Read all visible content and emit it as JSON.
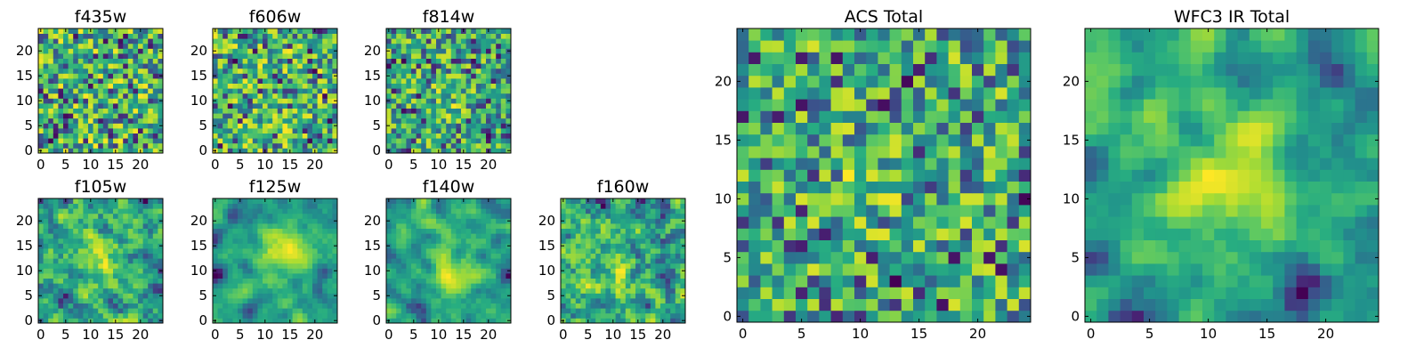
{
  "chart_data": [
    {
      "type": "heatmap",
      "title": "f435w",
      "grid_size": 25,
      "xticks": [
        0,
        5,
        10,
        15,
        20
      ],
      "yticks": [
        0,
        5,
        10,
        15,
        20
      ],
      "colormap": "viridis",
      "seed": 435,
      "smooth": 0,
      "blobs": []
    },
    {
      "type": "heatmap",
      "title": "f606w",
      "grid_size": 25,
      "xticks": [
        0,
        5,
        10,
        15,
        20
      ],
      "yticks": [
        0,
        5,
        10,
        15,
        20
      ],
      "colormap": "viridis",
      "seed": 606,
      "smooth": 0,
      "blobs": []
    },
    {
      "type": "heatmap",
      "title": "f814w",
      "grid_size": 25,
      "xticks": [
        0,
        5,
        10,
        15,
        20
      ],
      "yticks": [
        0,
        5,
        10,
        15,
        20
      ],
      "colormap": "viridis",
      "seed": 814,
      "smooth": 0,
      "blobs": [
        {
          "x": 12,
          "y": 11,
          "r": 2.5,
          "amp": 0.25
        }
      ]
    },
    {
      "type": "heatmap",
      "title": "f105w",
      "grid_size": 25,
      "xticks": [
        0,
        5,
        10,
        15,
        20
      ],
      "yticks": [
        0,
        5,
        10,
        15,
        20
      ],
      "colormap": "viridis",
      "seed": 105,
      "smooth": 1,
      "blobs": [
        {
          "x": 12,
          "y": 12,
          "r": 4,
          "amp": 0.2
        }
      ]
    },
    {
      "type": "heatmap",
      "title": "f125w",
      "grid_size": 25,
      "xticks": [
        0,
        5,
        10,
        15,
        20
      ],
      "yticks": [
        0,
        5,
        10,
        15,
        20
      ],
      "colormap": "viridis",
      "seed": 125,
      "smooth": 2,
      "blobs": [
        {
          "x": 13,
          "y": 13,
          "r": 4,
          "amp": 0.35
        }
      ]
    },
    {
      "type": "heatmap",
      "title": "f140w",
      "grid_size": 25,
      "xticks": [
        0,
        5,
        10,
        15,
        20
      ],
      "yticks": [
        0,
        5,
        10,
        15,
        20
      ],
      "colormap": "viridis",
      "seed": 140,
      "smooth": 2,
      "blobs": [
        {
          "x": 13,
          "y": 11,
          "r": 4,
          "amp": 0.3
        }
      ]
    },
    {
      "type": "heatmap",
      "title": "f160w",
      "grid_size": 25,
      "xticks": [
        0,
        5,
        10,
        15,
        20
      ],
      "yticks": [
        0,
        5,
        10,
        15,
        20
      ],
      "colormap": "viridis",
      "seed": 160,
      "smooth": 1,
      "blobs": [
        {
          "x": 10,
          "y": 9,
          "r": 4,
          "amp": 0.2
        }
      ]
    },
    {
      "type": "heatmap",
      "title": "ACS Total",
      "grid_size": 25,
      "xticks": [
        0,
        5,
        10,
        15,
        20
      ],
      "yticks": [
        0,
        5,
        10,
        15,
        20
      ],
      "colormap": "viridis",
      "seed": 2001,
      "smooth": 0,
      "blobs": [
        {
          "x": 11,
          "y": 12,
          "r": 3,
          "amp": 0.15
        }
      ]
    },
    {
      "type": "heatmap",
      "title": "WFC3 IR Total",
      "grid_size": 25,
      "xticks": [
        0,
        5,
        10,
        15,
        20
      ],
      "yticks": [
        0,
        5,
        10,
        15,
        20
      ],
      "colormap": "viridis",
      "seed": 3001,
      "smooth": 2,
      "blobs": [
        {
          "x": 12,
          "y": 12,
          "r": 4,
          "amp": 0.4
        },
        {
          "x": 17,
          "y": 17,
          "r": 2,
          "amp": 0.2
        }
      ]
    }
  ]
}
